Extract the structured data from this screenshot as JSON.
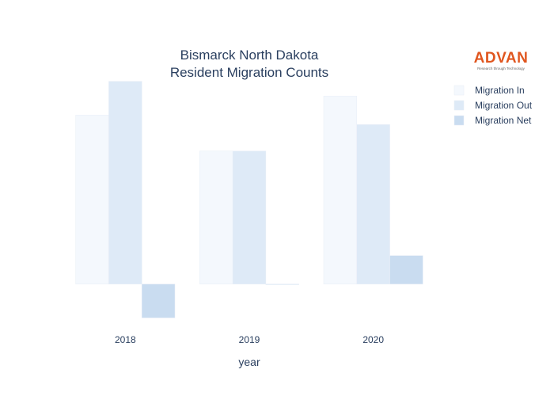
{
  "chart_data": {
    "type": "bar",
    "title_lines": [
      "Bismarck North Dakota",
      "Resident Migration Counts"
    ],
    "xlabel": "year",
    "ylabel": "",
    "categories": [
      "2018",
      "2019",
      "2020"
    ],
    "series": [
      {
        "name": "Migration In",
        "values": [
          1600,
          1260,
          1780
        ],
        "color": "#f4f8fd"
      },
      {
        "name": "Migration Out",
        "values": [
          1920,
          1260,
          1510
        ],
        "color": "#deeaf7"
      },
      {
        "name": "Migration Net",
        "values": [
          -320,
          0,
          270
        ],
        "color": "#c9dcf0"
      }
    ],
    "ylim": [
      -400,
      1940
    ],
    "grid": false,
    "legend_position": "top-right"
  },
  "logo": {
    "text": "ADVAN",
    "tagline": "Research through Technology",
    "color": "#e0561f"
  }
}
